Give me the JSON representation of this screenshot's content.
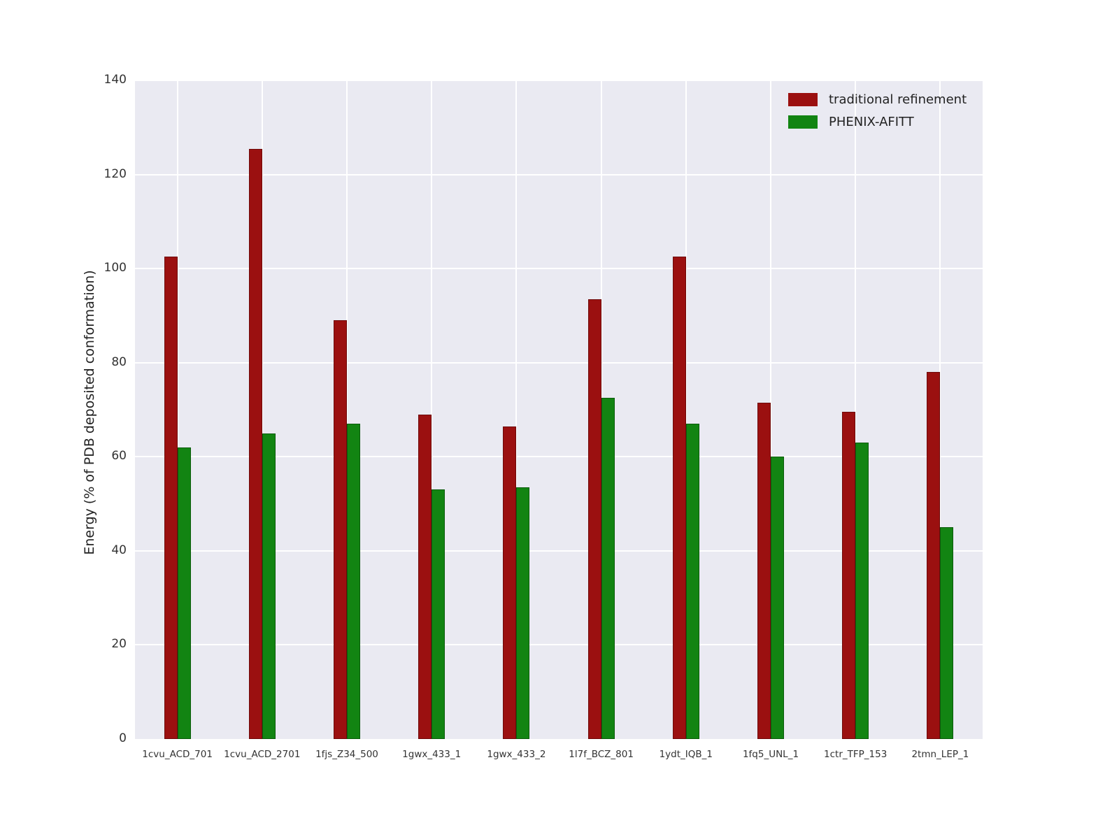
{
  "chart_data": {
    "type": "bar",
    "title": "",
    "xlabel": "",
    "ylabel": "Energy (% of PDB deposited conformation)",
    "ylim": [
      0,
      140
    ],
    "yticks": [
      0,
      20,
      40,
      60,
      80,
      100,
      120,
      140
    ],
    "grid": true,
    "legend_position": "upper right",
    "categories": [
      "1cvu_ACD_701",
      "1cvu_ACD_2701",
      "1fjs_Z34_500",
      "1gwx_433_1",
      "1gwx_433_2",
      "1l7f_BCZ_801",
      "1ydt_IQB_1",
      "1fq5_UNL_1",
      "1ctr_TFP_153",
      "2tmn_LEP_1"
    ],
    "series": [
      {
        "name": "traditional refinement",
        "color": "#9b1010",
        "edge_color": "#6e0a0a",
        "values": [
          102.5,
          125.5,
          89,
          69,
          66.5,
          93.5,
          102.5,
          71.5,
          69.5,
          78
        ]
      },
      {
        "name": "PHENIX-AFITT",
        "color": "#128412",
        "edge_color": "#0b5c0b",
        "values": [
          62,
          65,
          67,
          53,
          53.5,
          72.5,
          67,
          60,
          63,
          45
        ]
      }
    ]
  }
}
